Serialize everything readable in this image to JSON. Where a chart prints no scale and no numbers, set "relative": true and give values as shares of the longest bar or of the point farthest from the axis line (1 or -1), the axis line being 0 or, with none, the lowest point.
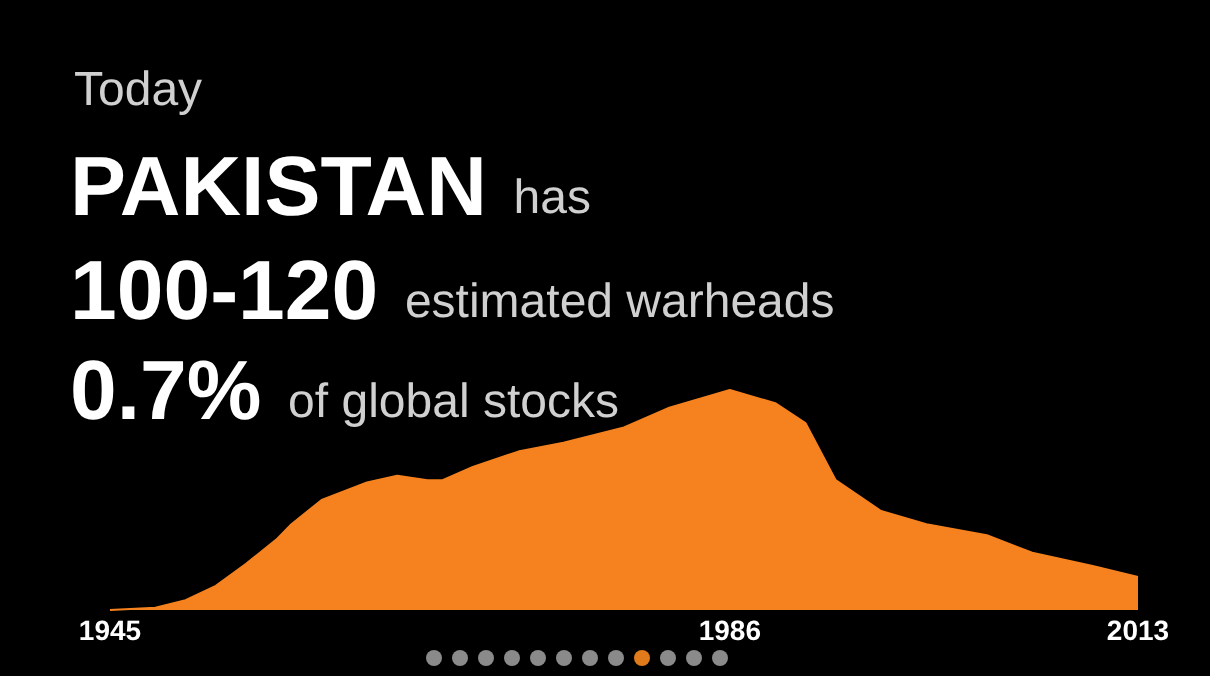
{
  "chart_data": {
    "type": "area",
    "title": "Today",
    "annotations": [
      "PAKISTAN",
      "has",
      "100-120",
      "estimated warheads",
      "0.7%",
      "of global stocks"
    ],
    "relative": true,
    "xlim": [
      1945,
      2013
    ],
    "xticks": [
      1945,
      1986,
      2013
    ],
    "grid": false,
    "series": [
      {
        "color": "#f5821f",
        "x": [
          1945,
          1948,
          1950,
          1952,
          1954,
          1956,
          1957,
          1959,
          1962,
          1964,
          1966,
          1967,
          1969,
          1972,
          1975,
          1979,
          1982,
          1986,
          1989,
          1991,
          1993,
          1996,
          1999,
          2003,
          2006,
          2010,
          2013
        ],
        "values": [
          0,
          0.01,
          0.045,
          0.11,
          0.21,
          0.32,
          0.39,
          0.5,
          0.58,
          0.61,
          0.59,
          0.59,
          0.65,
          0.72,
          0.76,
          0.83,
          0.92,
          1,
          0.94,
          0.85,
          0.59,
          0.45,
          0.39,
          0.34,
          0.26,
          0.2,
          0.15
        ]
      }
    ]
  }
}
